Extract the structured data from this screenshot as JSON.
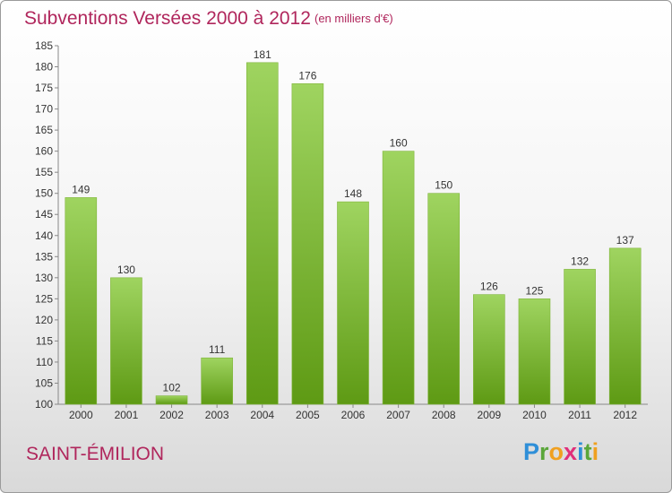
{
  "header": {
    "title": "Subventions Versées 2000 à 2012",
    "subtitle": "(en milliers d'€)"
  },
  "footer": {
    "town": "SAINT-ÉMILION",
    "logo_letters": [
      "P",
      "r",
      "o",
      "x",
      "i",
      "t",
      "i"
    ],
    "logo_colors": [
      "#2f8fd8",
      "#5aa63a",
      "#f0a020",
      "#e02f7a",
      "#2f8fd8",
      "#5aa63a",
      "#f0a020"
    ]
  },
  "colors": {
    "bar_light": "#9fd460",
    "bar_dark": "#5e9a14",
    "accent": "#b0265c"
  },
  "chart_data": {
    "type": "bar",
    "categories": [
      "2000",
      "2001",
      "2002",
      "2003",
      "2004",
      "2005",
      "2006",
      "2007",
      "2008",
      "2009",
      "2010",
      "2011",
      "2012"
    ],
    "values": [
      149,
      130,
      102,
      111,
      181,
      176,
      148,
      160,
      150,
      126,
      125,
      132,
      137
    ],
    "title": "Subventions Versées 2000 à 2012",
    "subtitle": "(en milliers d'€)",
    "ylim": [
      100,
      185
    ],
    "yticks": [
      100,
      105,
      110,
      115,
      120,
      125,
      130,
      135,
      140,
      145,
      150,
      155,
      160,
      165,
      170,
      175,
      180,
      185
    ],
    "grid": false
  }
}
